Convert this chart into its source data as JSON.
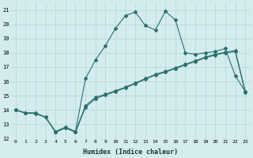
{
  "xlabel": "Humidex (Indice chaleur)",
  "xlim": [
    -0.5,
    23.5
  ],
  "ylim": [
    12,
    21.5
  ],
  "yticks": [
    12,
    13,
    14,
    15,
    16,
    17,
    18,
    19,
    20,
    21
  ],
  "xticks": [
    0,
    1,
    2,
    3,
    4,
    5,
    6,
    7,
    8,
    9,
    10,
    11,
    12,
    13,
    14,
    15,
    16,
    17,
    18,
    19,
    20,
    21,
    22,
    23
  ],
  "bg_color": "#d4ecee",
  "grid_color": "#b8d8da",
  "line_color": "#2b7070",
  "line1_x": [
    0,
    1,
    2,
    3,
    4,
    5,
    6,
    7,
    8,
    9,
    10,
    11,
    12,
    13,
    14,
    15,
    16,
    17,
    18,
    19,
    20,
    21,
    22,
    23
  ],
  "line1_y": [
    14.0,
    13.8,
    13.8,
    13.5,
    12.5,
    12.8,
    12.5,
    14.3,
    14.9,
    15.1,
    15.35,
    15.6,
    15.9,
    16.2,
    16.5,
    16.7,
    16.95,
    17.2,
    17.45,
    17.7,
    17.9,
    18.05,
    18.15,
    15.3
  ],
  "line2_x": [
    0,
    1,
    2,
    3,
    4,
    5,
    6,
    7,
    8,
    9,
    10,
    11,
    12,
    13,
    14,
    15,
    16,
    17,
    18,
    19,
    20,
    21,
    22,
    23
  ],
  "line2_y": [
    14.0,
    13.8,
    13.8,
    13.5,
    12.5,
    12.8,
    12.5,
    16.2,
    17.5,
    18.5,
    19.7,
    20.6,
    20.85,
    19.9,
    19.6,
    20.9,
    20.3,
    18.0,
    17.9,
    18.0,
    18.1,
    18.3,
    16.4,
    15.3
  ],
  "line3_x": [
    0,
    1,
    2,
    3,
    4,
    5,
    6,
    7,
    8,
    9,
    10,
    11,
    12,
    13,
    14,
    15,
    16,
    17,
    18,
    19,
    20,
    21,
    22,
    23
  ],
  "line3_y": [
    14.0,
    13.8,
    13.75,
    13.5,
    12.45,
    12.75,
    12.45,
    14.2,
    14.8,
    15.05,
    15.3,
    15.55,
    15.85,
    16.15,
    16.45,
    16.65,
    16.9,
    17.15,
    17.4,
    17.65,
    17.85,
    18.0,
    18.1,
    15.25
  ]
}
